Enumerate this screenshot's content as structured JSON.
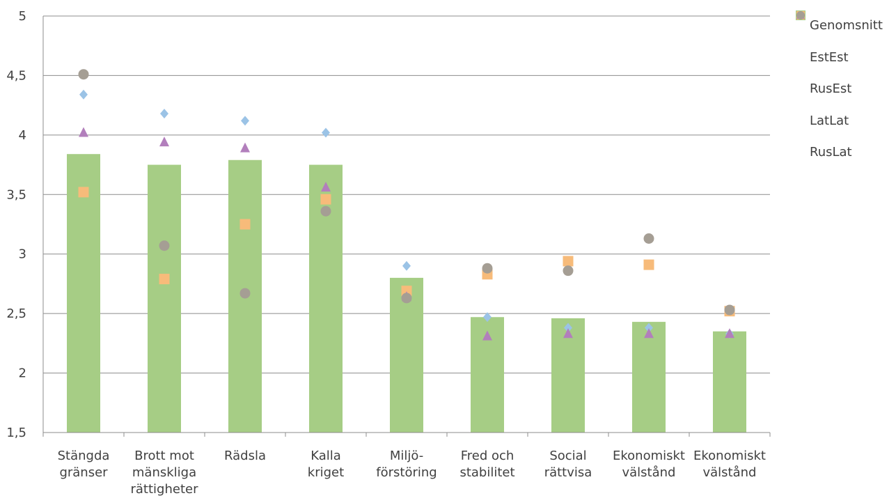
{
  "chart_data": {
    "type": "bar",
    "categories": [
      [
        "Stängda",
        "gränser"
      ],
      [
        "Brott mot",
        "mänskliga",
        "rättigheter"
      ],
      [
        "Rädsla"
      ],
      [
        "Kalla",
        "kriget"
      ],
      [
        "Miljö-",
        "förstöring"
      ],
      [
        "Fred och",
        "stabilitet"
      ],
      [
        "Social",
        "rättvisa"
      ],
      [
        "Ekonomiskt",
        "välstånd"
      ],
      [
        "Ekonomiskt",
        "välstånd"
      ]
    ],
    "ylim": [
      1.5,
      5
    ],
    "yticks": [
      "1,5",
      "2",
      "2,5",
      "3",
      "3,5",
      "4",
      "4,5",
      "5"
    ],
    "ytick_values": [
      1.5,
      2,
      2.5,
      3,
      3.5,
      4,
      4.5,
      5
    ],
    "grid": true,
    "legend_position": "right",
    "series": [
      {
        "name": "Genomsnitt",
        "kind": "bar",
        "marker": "square",
        "color": "#a6cd85",
        "values": [
          3.84,
          3.75,
          3.79,
          3.75,
          2.8,
          2.47,
          2.46,
          2.43,
          2.35
        ]
      },
      {
        "name": "EstEst",
        "kind": "marker",
        "marker": "diamond",
        "color": "#9bc3e6",
        "values": [
          4.34,
          4.18,
          4.12,
          4.02,
          2.9,
          2.47,
          2.38,
          2.38,
          2.33
        ]
      },
      {
        "name": "RusEst",
        "kind": "marker",
        "marker": "square",
        "color": "#f7bb7a",
        "values": [
          3.52,
          2.79,
          3.25,
          3.46,
          2.69,
          2.83,
          2.94,
          2.91,
          2.52
        ]
      },
      {
        "name": "LatLat",
        "kind": "marker",
        "marker": "triangle",
        "color": "#b27fbc",
        "values": [
          4.02,
          3.94,
          3.89,
          3.56,
          2.64,
          2.31,
          2.33,
          2.33,
          2.33
        ]
      },
      {
        "name": "RusLat",
        "kind": "marker",
        "marker": "circle",
        "color": "#a59e94",
        "values": [
          4.51,
          3.07,
          2.67,
          3.36,
          2.63,
          2.88,
          2.86,
          3.13,
          2.53
        ]
      }
    ]
  }
}
